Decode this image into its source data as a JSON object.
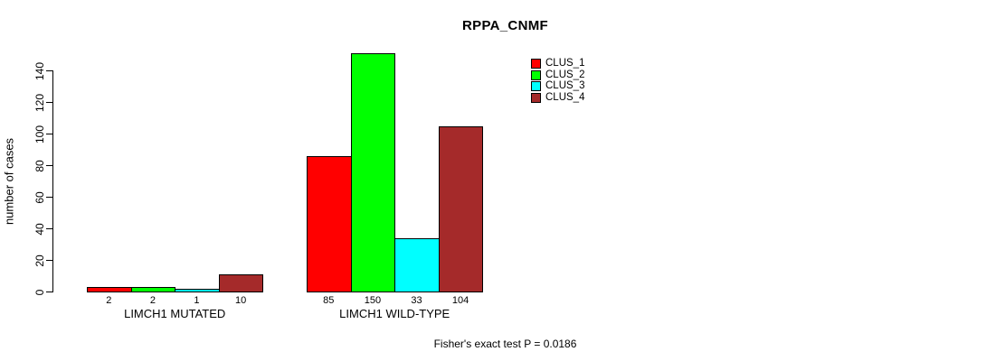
{
  "chart_data": {
    "type": "bar",
    "title": "RPPA_CNMF",
    "ylabel": "number of cases",
    "xlabel": "",
    "ylim": [
      0,
      150
    ],
    "yticks": [
      0,
      20,
      40,
      60,
      80,
      100,
      120,
      140
    ],
    "grid": false,
    "legend_position": "top-right-inside",
    "series": [
      {
        "name": "CLUS_1",
        "color": "#ff0000"
      },
      {
        "name": "CLUS_2",
        "color": "#00ff00"
      },
      {
        "name": "CLUS_3",
        "color": "#00ffff"
      },
      {
        "name": "CLUS_4",
        "color": "#a52a2a"
      }
    ],
    "categories": [
      "LIMCH1 MUTATED",
      "LIMCH1 WILD-TYPE"
    ],
    "groups": [
      {
        "label": "LIMCH1 MUTATED",
        "values": [
          2,
          2,
          1,
          10
        ]
      },
      {
        "label": "LIMCH1 WILD-TYPE",
        "values": [
          85,
          150,
          33,
          104
        ]
      }
    ],
    "bar_value_labels_shown": true,
    "bar_border_color": "#000000",
    "axis_color": "#000000",
    "footnote": "Fisher's exact test P = 0.0186"
  }
}
